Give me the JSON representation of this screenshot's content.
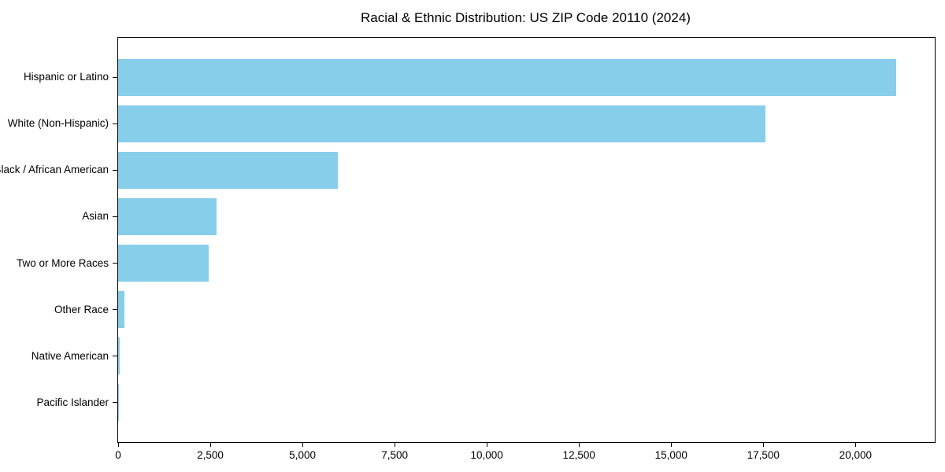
{
  "chart_data": {
    "type": "bar",
    "orientation": "horizontal",
    "title": "Racial & Ethnic Distribution: US ZIP Code 20110 (2024)",
    "categories": [
      "Hispanic or Latino",
      "White (Non-Hispanic)",
      "Black / African American",
      "Asian",
      "Two or More Races",
      "Other Race",
      "Native American",
      "Pacific Islander"
    ],
    "values": [
      21100,
      17550,
      5950,
      2680,
      2450,
      180,
      50,
      10
    ],
    "xlabel": "",
    "ylabel": "",
    "xlim": [
      0,
      22150
    ],
    "x_ticks": [
      0,
      2500,
      5000,
      7500,
      10000,
      12500,
      15000,
      17500,
      20000
    ],
    "x_tick_labels": [
      "0",
      "2,500",
      "5,000",
      "7,500",
      "10,000",
      "12,500",
      "15,000",
      "17,500",
      "20,000"
    ],
    "bar_color": "#87CEEB",
    "grid": false,
    "legend": null,
    "background_color": "#ffffff",
    "axis_color": "#000000",
    "text_color": "#000000"
  }
}
